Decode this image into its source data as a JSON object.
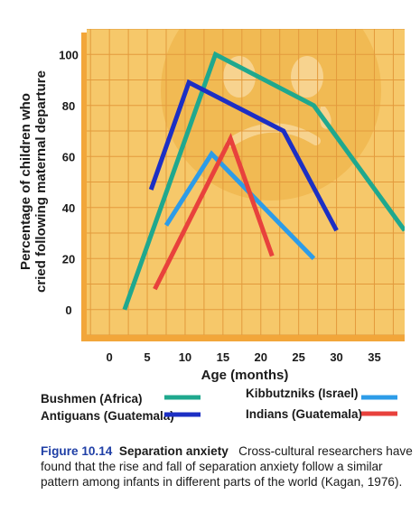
{
  "chart_data": {
    "type": "line",
    "ylabel_lines": [
      "Percentage of children who",
      "cried following maternal departure"
    ],
    "xlabel": "Age (months)",
    "x_ticks": [
      "0",
      "5",
      "10",
      "15",
      "20",
      "25",
      "30",
      "35"
    ],
    "y_ticks": [
      "0",
      "20",
      "40",
      "60",
      "80",
      "100"
    ],
    "xlim": [
      -3,
      39
    ],
    "ylim": [
      -10,
      110
    ],
    "grid": true,
    "legend_placement": "bottom",
    "series": [
      {
        "name": "Bushmen (Africa)",
        "color": "#1fa88e",
        "x": [
          2,
          14,
          27,
          39
        ],
        "y": [
          0,
          100,
          80,
          31
        ]
      },
      {
        "name": "Antiguans (Guatemala)",
        "color": "#1c2fc4",
        "x": [
          5.5,
          10.5,
          23,
          30
        ],
        "y": [
          47,
          89,
          70,
          31
        ]
      },
      {
        "name": "Kibbutzniks (Israel)",
        "color": "#2d9ce8",
        "x": [
          7.5,
          13.5,
          27
        ],
        "y": [
          33,
          61,
          20
        ]
      },
      {
        "name": "Indians (Guatemala)",
        "color": "#e8413c",
        "x": [
          6,
          16,
          21.5
        ],
        "y": [
          8,
          67,
          21
        ]
      }
    ]
  },
  "caption": {
    "figure_number": "Figure 10.14",
    "title": "Separation anxiety",
    "text": "Cross-cultural researchers have found that the rise and fall of separation anxiety follow a similar pattern among infants in different parts of the world (Kagan, 1976)."
  },
  "colors": {
    "plot_background": "#f6c86a",
    "grid": "#e39a3c",
    "frame_shadow": "#f2a63a",
    "face": "#f0b64e",
    "face_features": "#f8d79a"
  }
}
